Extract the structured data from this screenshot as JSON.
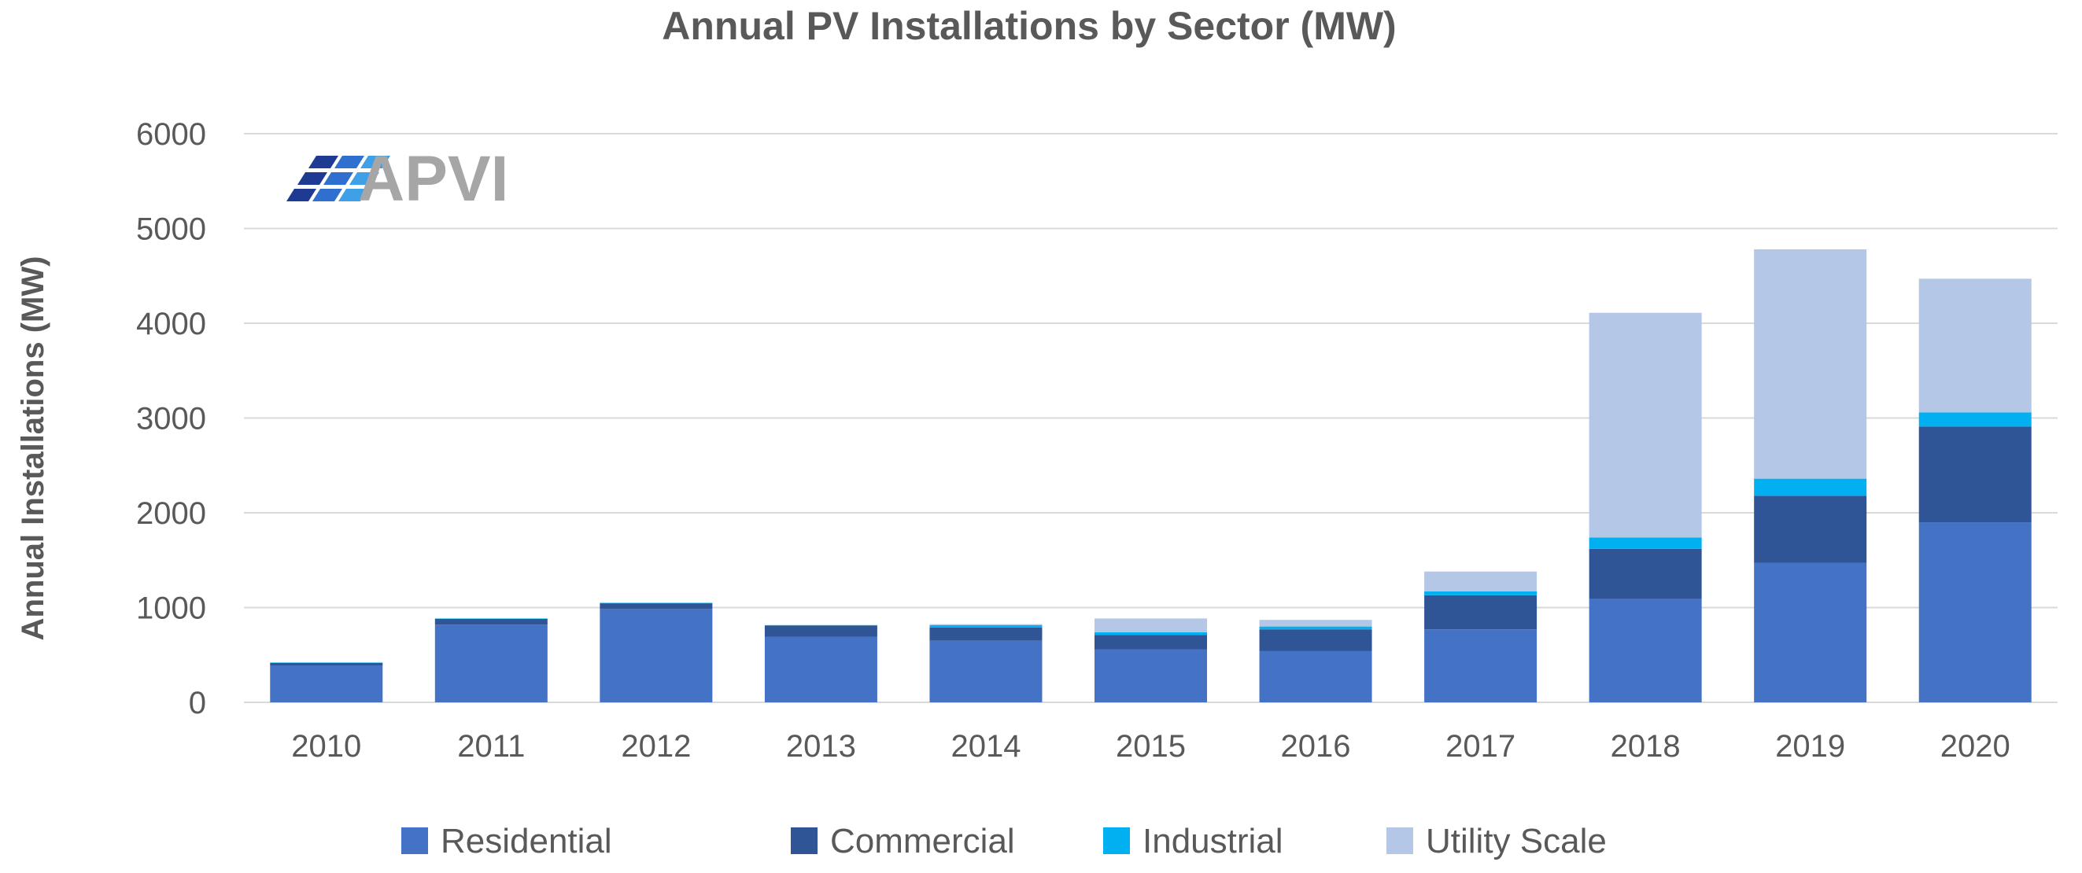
{
  "chart_data": {
    "type": "bar",
    "stacked": true,
    "title": "Annual PV Installations by Sector (MW)",
    "ylabel": "Annual Installations (MW)",
    "xlabel": "",
    "ylim": [
      0,
      6000
    ],
    "yticks": [
      0,
      1000,
      2000,
      3000,
      4000,
      5000,
      6000
    ],
    "grid": true,
    "legend_position": "bottom",
    "categories": [
      "2010",
      "2011",
      "2012",
      "2013",
      "2014",
      "2015",
      "2016",
      "2017",
      "2018",
      "2019",
      "2020"
    ],
    "series": [
      {
        "name": "Residential",
        "color": "#4472c4",
        "values": [
          390,
          820,
          985,
          690,
          650,
          560,
          540,
          770,
          1090,
          1470,
          1900
        ]
      },
      {
        "name": "Commercial",
        "color": "#2f5597",
        "values": [
          25,
          60,
          60,
          120,
          140,
          150,
          230,
          360,
          530,
          710,
          1010
        ]
      },
      {
        "name": "Industrial",
        "color": "#00b0f0",
        "values": [
          5,
          5,
          5,
          5,
          25,
          30,
          30,
          40,
          120,
          180,
          150
        ]
      },
      {
        "name": "Utility Scale",
        "color": "#b4c7e7",
        "values": [
          0,
          0,
          0,
          0,
          10,
          145,
          70,
          210,
          2370,
          2420,
          1410
        ]
      }
    ]
  },
  "logo": {
    "text": "APVI",
    "colors": [
      "#1f3a93",
      "#2f6fcf",
      "#3fa0e8"
    ]
  }
}
